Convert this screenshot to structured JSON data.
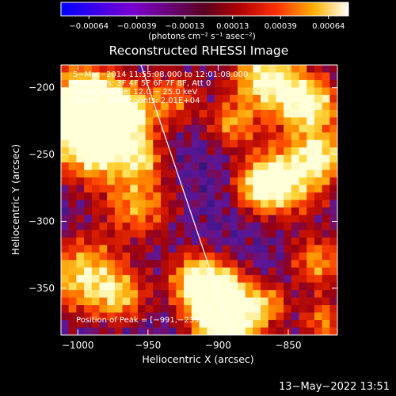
{
  "chart_data": {
    "type": "heatmap",
    "title": "Reconstructed RHESSI Image",
    "xlabel": "Heliocentric X (arcsec)",
    "ylabel": "Heliocentric Y (arcsec)",
    "xlim": [
      -1012,
      -815
    ],
    "ylim": [
      -385,
      -183
    ],
    "xticks": [
      {
        "v": -1000,
        "t": "−1000"
      },
      {
        "v": -950,
        "t": "−950"
      },
      {
        "v": -900,
        "t": "−900"
      },
      {
        "v": -850,
        "t": "−850"
      }
    ],
    "yticks": [
      {
        "v": -200,
        "t": "−200"
      },
      {
        "v": -250,
        "t": "−250"
      },
      {
        "v": -300,
        "t": "−300"
      },
      {
        "v": -350,
        "t": "−350"
      }
    ],
    "colorbar": {
      "ticks": [
        "−0.00064",
        "−0.00039",
        "−0.00013",
        "0.00013",
        "0.00039",
        "0.00064"
      ],
      "unit": "(photons cm⁻² s⁻¹ asec⁻²)"
    },
    "annotations": [
      "5−Mar−2014 11:55:08.000 to 12:01:08.000",
      "Detectors: 3F 4F 5F 6F 7F 8F, Att 0",
      "Energy Range: 12.0 − 25.0 keV",
      "Clean     Total counts: 2.01E+04"
    ],
    "peak_label": "Position of Peak = [−991,−239]",
    "limb_line": [
      [
        -955,
        -183
      ],
      [
        -890,
        -385
      ]
    ],
    "colors": {
      "map_low": "#2a1466",
      "map_high": "#ffffd8"
    }
  },
  "footer": {
    "timestamp": "13−May−2022 13:51"
  }
}
